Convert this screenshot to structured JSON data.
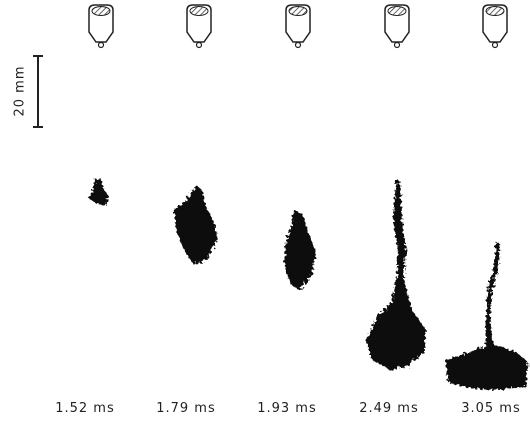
{
  "scale_bar": {
    "label": "20 mm"
  },
  "frames": [
    {
      "label": "1.52 ms"
    },
    {
      "label": "1.79 ms"
    },
    {
      "label": "1.93 ms"
    },
    {
      "label": "2.49 ms"
    },
    {
      "label": "3.05 ms"
    }
  ]
}
